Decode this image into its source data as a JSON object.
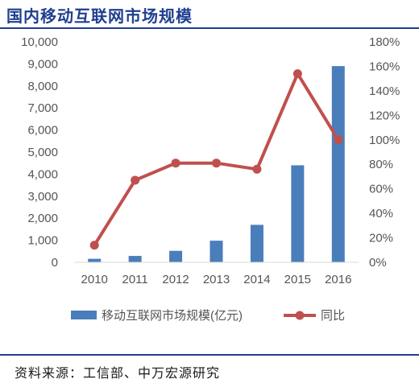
{
  "header": {
    "title": "国内移动互联网市场规模"
  },
  "footer": {
    "source": "资料来源：工信部、中万宏源研究"
  },
  "colors": {
    "title": "#1f3f8f",
    "rule": "#1f3f8f",
    "bar": "#4a7ebb",
    "line": "#c0504d",
    "axis": "#d9d9d9",
    "text": "#595959"
  },
  "chart_data": {
    "type": "bar+line",
    "categories": [
      "2010",
      "2011",
      "2012",
      "2013",
      "2014",
      "2015",
      "2016"
    ],
    "series": [
      {
        "name": "移动互联网市场规模(亿元)",
        "type": "bar",
        "axis": "left",
        "values": [
          160,
          290,
          520,
          980,
          1700,
          4400,
          8900
        ]
      },
      {
        "name": "同比",
        "type": "line",
        "axis": "right",
        "values": [
          14,
          67,
          81,
          81,
          76,
          154,
          100
        ]
      }
    ],
    "y_left": {
      "ylim": [
        0,
        10000
      ],
      "ticks": [
        "0",
        "1,000",
        "2,000",
        "3,000",
        "4,000",
        "5,000",
        "6,000",
        "7,000",
        "8,000",
        "9,000",
        "10,000"
      ]
    },
    "y_right": {
      "ylim": [
        0,
        180
      ],
      "ticks": [
        "0%",
        "20%",
        "40%",
        "60%",
        "80%",
        "100%",
        "120%",
        "140%",
        "160%",
        "180%"
      ]
    },
    "grid": false,
    "legend_position": "bottom"
  }
}
